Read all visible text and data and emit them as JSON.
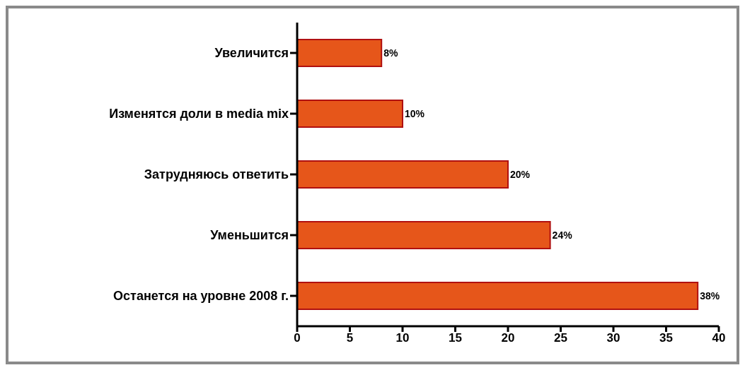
{
  "chart_data": {
    "type": "bar",
    "orientation": "horizontal",
    "categories": [
      "Увеличится",
      "Изменятся доли в media mix",
      "Затрудняюсь ответить",
      "Уменьшится",
      "Останется на уровне 2008 г."
    ],
    "values": [
      8,
      10,
      20,
      24,
      38
    ],
    "value_labels": [
      "8%",
      "10%",
      "20%",
      "24%",
      "38%"
    ],
    "color": "#e6561a",
    "xlim": [
      0,
      40
    ],
    "xticks": [
      0,
      5,
      10,
      15,
      20,
      25,
      30,
      35,
      40
    ]
  }
}
